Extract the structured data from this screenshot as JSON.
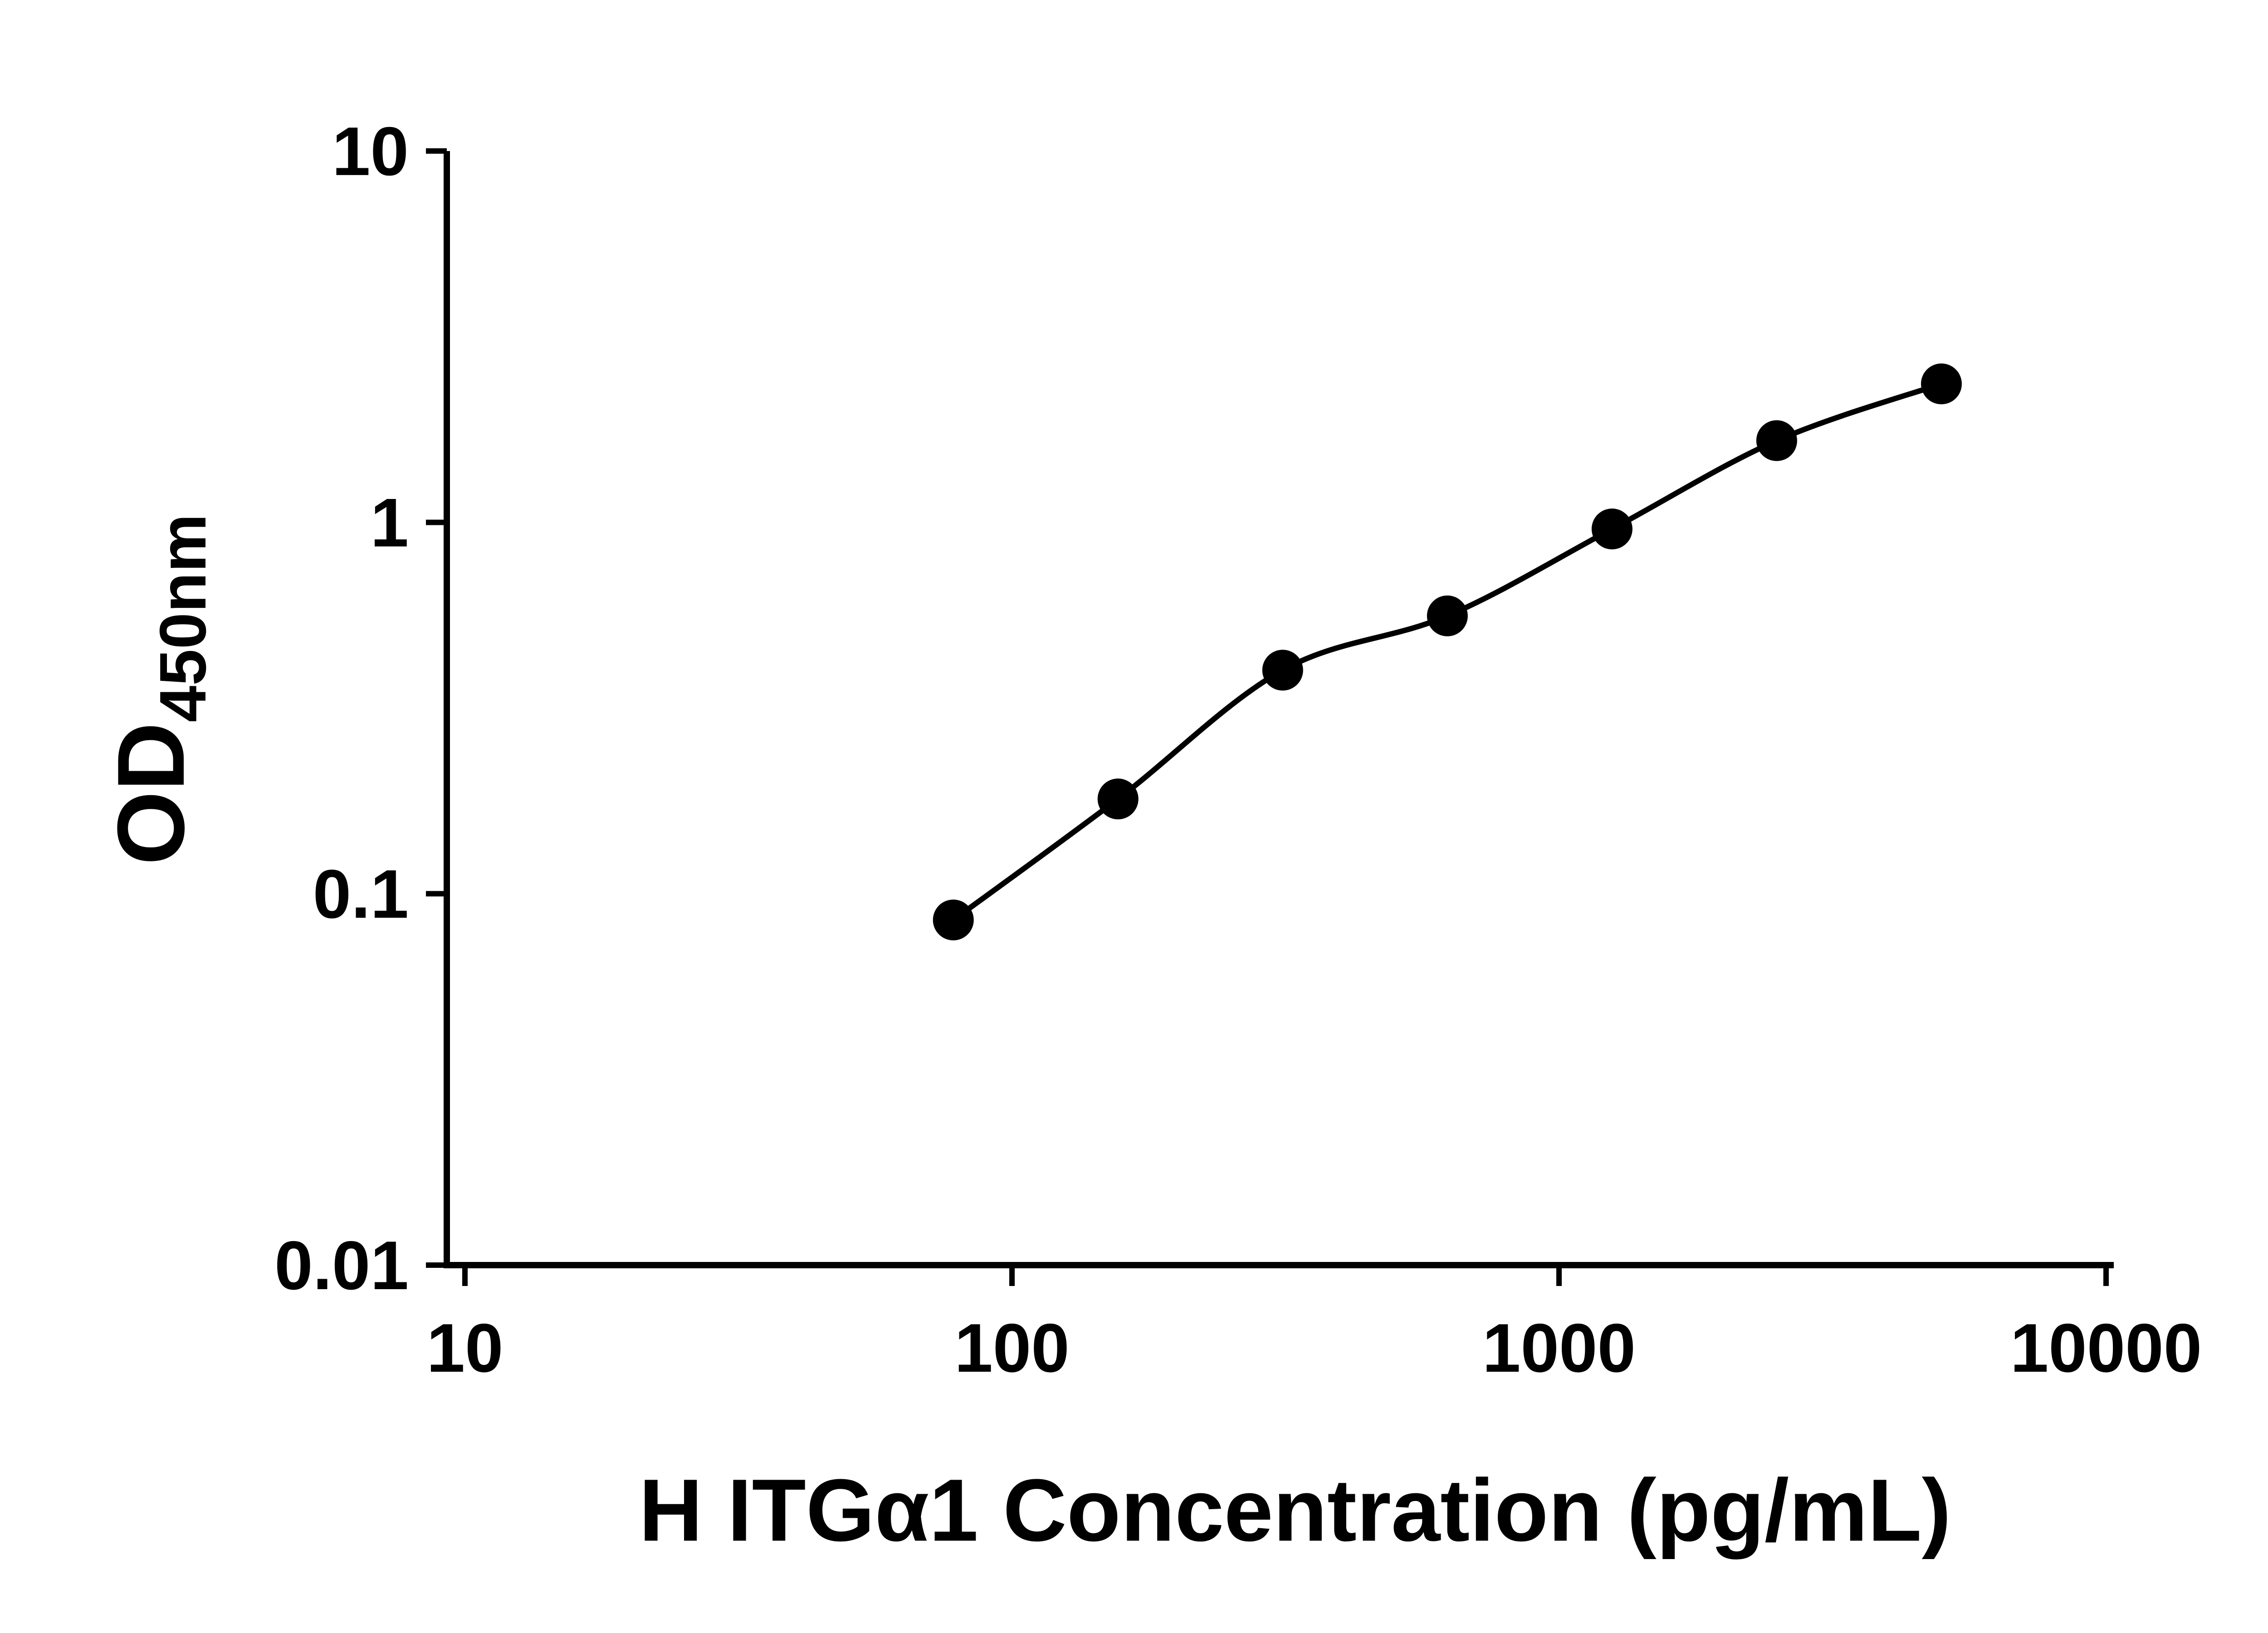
{
  "chart_data": {
    "type": "scatter",
    "title": "",
    "xlabel": "H ITGα1 Concentration (pg/mL)",
    "ylabel_main": "OD",
    "ylabel_sub": "450nm",
    "x_scale": "log",
    "y_scale": "log",
    "xlim": [
      10,
      10000
    ],
    "ylim": [
      0.01,
      10
    ],
    "x_ticks": [
      10,
      100,
      1000,
      10000
    ],
    "x_tick_labels": [
      "10",
      "100",
      "1000",
      "10000"
    ],
    "y_ticks": [
      0.01,
      0.1,
      1,
      10
    ],
    "y_tick_labels": [
      "0.01",
      "0.1",
      "1",
      "10"
    ],
    "grid": false,
    "legend": "none",
    "series": [
      {
        "marker": "circle",
        "x": [
          78.125,
          156.25,
          312.5,
          625,
          1250,
          2500,
          5000
        ],
        "y": [
          0.085,
          0.18,
          0.4,
          0.56,
          0.96,
          1.66,
          2.36
        ]
      }
    ],
    "colors": {
      "axis": "#000000",
      "marker": "#000000",
      "line": "#000000",
      "background": "#ffffff"
    }
  }
}
